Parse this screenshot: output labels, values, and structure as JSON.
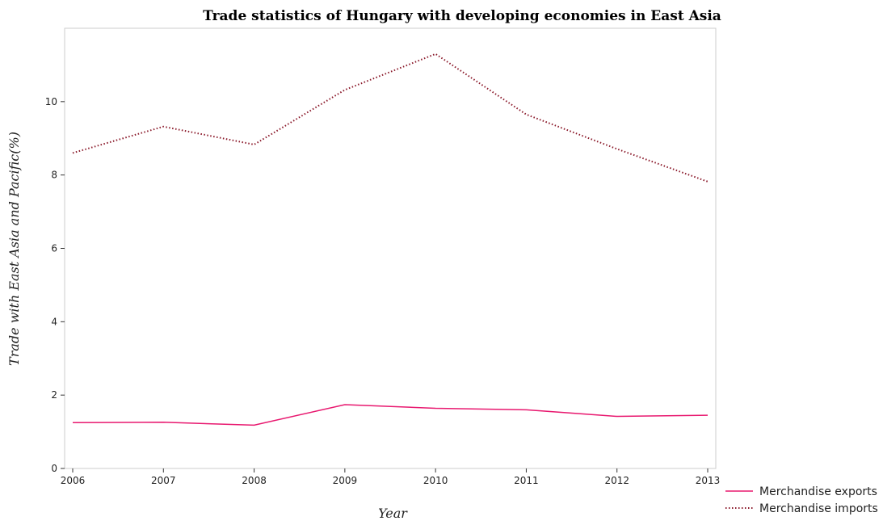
{
  "chart_data": {
    "type": "line",
    "title": "Trade statistics of Hungary with developing economies in East Asia",
    "xlabel": "Year",
    "ylabel": "Trade with East Asia and Pacific(%)",
    "x": [
      "2006",
      "2007",
      "2008",
      "2009",
      "2010",
      "2011",
      "2012",
      "2013"
    ],
    "ylim": [
      0,
      12
    ],
    "yticks": [
      0,
      2,
      4,
      6,
      8,
      10
    ],
    "grid": false,
    "legend_position": "bottom-right",
    "series": [
      {
        "name": "Merchandise exports",
        "color": "#e8186f",
        "style": "solid",
        "values": [
          1.25,
          1.26,
          1.18,
          1.74,
          1.64,
          1.6,
          1.42,
          1.45
        ]
      },
      {
        "name": "Merchandise imports",
        "color": "#8b1a2b",
        "style": "dotted",
        "values": [
          8.6,
          9.32,
          8.83,
          10.32,
          11.3,
          9.65,
          8.71,
          7.82
        ]
      }
    ]
  }
}
